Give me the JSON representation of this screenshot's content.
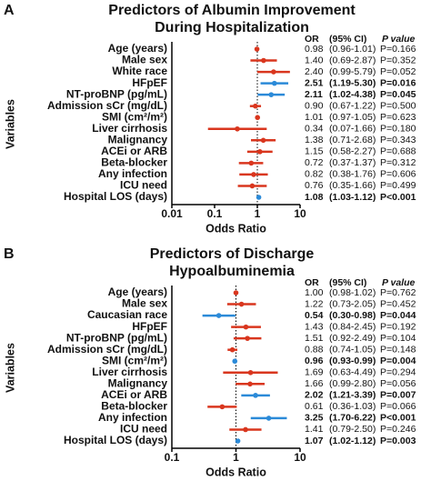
{
  "chart_data": [
    {
      "type": "forest",
      "panel": "A",
      "title": [
        "Predictors of Albumin Improvement",
        "During Hospitalization"
      ],
      "y_label": "Variables",
      "x_label": "Odds Ratio",
      "log_x": true,
      "xlim": [
        0.01,
        10
      ],
      "xticks": [
        0.01,
        0.1,
        1,
        10
      ],
      "reference_line": 1,
      "table_headers": [
        "OR",
        "(95% CI)",
        "P value"
      ],
      "categories": [
        "Age (years)",
        "Male sex",
        "White race",
        "HFpEF",
        "NT-proBNP (pg/mL)",
        "Admission sCr (mg/dL)",
        "SMI (cm²/m²)",
        "Liver cirrhosis",
        "Malignancy",
        "ACEi or ARB",
        "Beta-blocker",
        "Any infection",
        "ICU need",
        "Hospital LOS (days)"
      ],
      "values": [
        0.98,
        1.4,
        2.4,
        2.51,
        2.11,
        0.9,
        1.01,
        0.34,
        1.38,
        1.15,
        0.72,
        0.82,
        0.76,
        1.08
      ],
      "value_labels": [
        "0.98",
        "1.40",
        "2.40",
        "2.51",
        "2.11",
        "0.90",
        "1.01",
        "0.34",
        "1.38",
        "1.15",
        "0.72",
        "0.82",
        "0.76",
        "1.08"
      ],
      "lower": [
        0.96,
        0.69,
        0.99,
        1.19,
        1.02,
        0.67,
        0.97,
        0.07,
        0.71,
        0.58,
        0.37,
        0.38,
        0.35,
        1.03
      ],
      "upper": [
        1.01,
        2.87,
        5.79,
        5.3,
        4.38,
        1.22,
        1.05,
        1.66,
        2.68,
        2.27,
        1.37,
        1.76,
        1.66,
        1.12
      ],
      "ci_labels": [
        "(0.96-1.01)",
        "(0.69-2.87)",
        "(0.99-5.79)",
        "(1.19-5.30)",
        "(1.02-4.38)",
        "(0.67-1.22)",
        "(0.97-1.05)",
        "(0.07-1.66)",
        "(0.71-2.68)",
        "(0.58-2.27)",
        "(0.37-1.37)",
        "(0.38-1.76)",
        "(0.35-1.66)",
        "(1.03-1.12)"
      ],
      "p_labels": [
        "P=0.166",
        "P=0.352",
        "P=0.052",
        "P=0.016",
        "P=0.045",
        "P=0.500",
        "P=0.623",
        "P=0.180",
        "P=0.343",
        "P=0.688",
        "P=0.312",
        "P=0.606",
        "P=0.499",
        "P<0.001"
      ],
      "significant": [
        false,
        false,
        false,
        true,
        true,
        false,
        false,
        false,
        false,
        false,
        false,
        false,
        false,
        true
      ],
      "colors": {
        "significant": "#2b8ad8",
        "not_significant": "#d9361e"
      }
    },
    {
      "type": "forest",
      "panel": "B",
      "title": [
        "Predictors of Discharge",
        "Hypoalbuminemia"
      ],
      "y_label": "Variables",
      "x_label": "Odds Ratio",
      "log_x": true,
      "xlim": [
        0.1,
        10
      ],
      "xticks": [
        0.1,
        1,
        10
      ],
      "reference_line": 1,
      "table_headers": [
        "OR",
        "(95% CI)",
        "P value"
      ],
      "categories": [
        "Age (years)",
        "Male sex",
        "Caucasian race",
        "HFpEF",
        "NT-proBNP (pg/mL)",
        "Admission sCr (mg/dL)",
        "SMI (cm²/m²)",
        "Liver cirrhosis",
        "Malignancy",
        "ACEi or ARB",
        "Beta-blocker",
        "Any infection",
        "ICU need",
        "Hospital LOS (days)"
      ],
      "values": [
        1,
        1.22,
        0.54,
        1.43,
        1.51,
        0.88,
        0.96,
        1.69,
        1.66,
        2.02,
        0.61,
        3.25,
        1.41,
        1.07
      ],
      "value_labels": [
        "1.00",
        "1.22",
        "0.54",
        "1.43",
        "1.51",
        "0.88",
        "0.96",
        "1.69",
        "1.66",
        "2.02",
        "0.61",
        "3.25",
        "1.41",
        "1.07"
      ],
      "lower": [
        0.98,
        0.73,
        0.3,
        0.84,
        0.92,
        0.74,
        0.93,
        0.63,
        0.99,
        1.21,
        0.36,
        1.7,
        0.79,
        1.02
      ],
      "upper": [
        1.02,
        2.05,
        0.98,
        2.45,
        2.49,
        1.05,
        0.99,
        4.49,
        2.8,
        3.39,
        1.03,
        6.22,
        2.5,
        1.12
      ],
      "ci_labels": [
        "(0.98-1.02)",
        "(0.73-2.05)",
        "(0.30-0.98)",
        "(0.84-2.45)",
        "(0.92-2.49)",
        "(0.74-1.05)",
        "(0.93-0.99)",
        "(0.63-4.49)",
        "(0.99-2.80)",
        "(1.21-3.39)",
        "(0.36-1.03)",
        "(1.70-6.22)",
        "(0.79-2.50)",
        "(1.02-1.12)"
      ],
      "p_labels": [
        "P=0.762",
        "P=0.452",
        "P=0.044",
        "P=0.192",
        "P=0.104",
        "P=0.148",
        "P=0.004",
        "P=0.294",
        "P=0.056",
        "P=0.007",
        "P=0.066",
        "P<0.001",
        "P=0.246",
        "P=0.003"
      ],
      "significant": [
        false,
        false,
        true,
        false,
        false,
        false,
        true,
        false,
        false,
        true,
        false,
        true,
        false,
        true
      ],
      "colors": {
        "significant": "#2b8ad8",
        "not_significant": "#d9361e"
      }
    }
  ]
}
